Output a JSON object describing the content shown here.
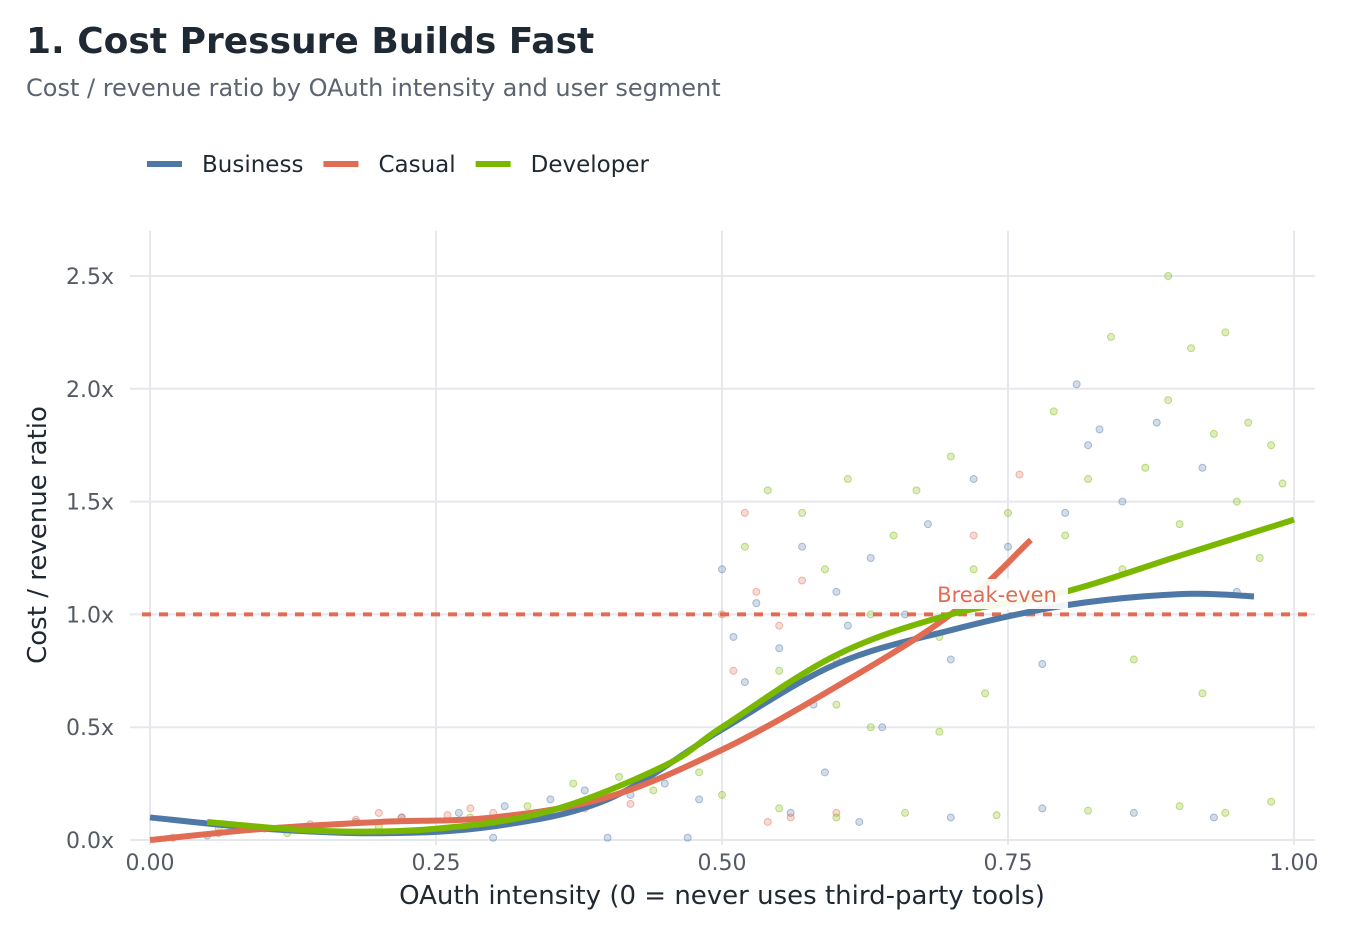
{
  "chart_data": {
    "type": "scatter",
    "title": "1. Cost Pressure Builds Fast",
    "subtitle": "Cost / revenue ratio by OAuth intensity and user segment",
    "xlabel": "OAuth intensity (0 = never uses third-party tools)",
    "ylabel": "Cost / revenue ratio",
    "xlim": [
      0,
      1
    ],
    "ylim": [
      0,
      2.7
    ],
    "xticks": [
      0,
      0.25,
      0.5,
      0.75,
      1.0
    ],
    "xtick_labels": [
      "0.00",
      "0.25",
      "0.50",
      "0.75",
      "1.00"
    ],
    "yticks": [
      0,
      0.5,
      1.0,
      1.5,
      2.0,
      2.5
    ],
    "ytick_labels": [
      "0.0x",
      "0.5x",
      "1.0x",
      "1.5x",
      "2.0x",
      "2.5x"
    ],
    "grid": true,
    "legend_position": "top-left",
    "reference_line": {
      "y": 1.0,
      "label": "Break-even",
      "color": "#e06c53",
      "style": "dashed"
    },
    "series": [
      {
        "name": "Business",
        "color": "#4e79a7",
        "trend": [
          [
            0,
            0.1
          ],
          [
            0.1,
            0.05
          ],
          [
            0.2,
            0.03
          ],
          [
            0.3,
            0.06
          ],
          [
            0.4,
            0.18
          ],
          [
            0.5,
            0.49
          ],
          [
            0.6,
            0.78
          ],
          [
            0.7,
            0.93
          ],
          [
            0.8,
            1.04
          ],
          [
            0.9,
            1.09
          ],
          [
            0.965,
            1.08
          ]
        ],
        "points": [
          [
            0.05,
            0.02
          ],
          [
            0.12,
            0.05
          ],
          [
            0.18,
            0.08
          ],
          [
            0.22,
            0.1
          ],
          [
            0.27,
            0.12
          ],
          [
            0.31,
            0.15
          ],
          [
            0.35,
            0.18
          ],
          [
            0.38,
            0.22
          ],
          [
            0.42,
            0.2
          ],
          [
            0.45,
            0.25
          ],
          [
            0.48,
            0.18
          ],
          [
            0.3,
            0.01
          ],
          [
            0.4,
            0.01
          ],
          [
            0.47,
            0.01
          ],
          [
            0.5,
            1.2
          ],
          [
            0.51,
            0.9
          ],
          [
            0.52,
            0.7
          ],
          [
            0.53,
            1.05
          ],
          [
            0.55,
            0.85
          ],
          [
            0.57,
            1.3
          ],
          [
            0.58,
            0.6
          ],
          [
            0.6,
            1.1
          ],
          [
            0.61,
            0.95
          ],
          [
            0.63,
            1.25
          ],
          [
            0.64,
            0.5
          ],
          [
            0.66,
            1.0
          ],
          [
            0.68,
            1.4
          ],
          [
            0.7,
            0.8
          ],
          [
            0.72,
            1.6
          ],
          [
            0.75,
            1.3
          ],
          [
            0.78,
            0.78
          ],
          [
            0.8,
            1.45
          ],
          [
            0.82,
            1.75
          ],
          [
            0.85,
            1.5
          ],
          [
            0.88,
            1.85
          ],
          [
            0.92,
            1.65
          ],
          [
            0.95,
            1.1
          ],
          [
            0.56,
            0.12
          ],
          [
            0.62,
            0.08
          ],
          [
            0.7,
            0.1
          ],
          [
            0.78,
            0.14
          ],
          [
            0.86,
            0.12
          ],
          [
            0.93,
            0.1
          ],
          [
            0.59,
            0.3
          ],
          [
            0.83,
            1.82
          ],
          [
            0.81,
            2.02
          ]
        ]
      },
      {
        "name": "Casual",
        "color": "#e06c53",
        "trend": [
          [
            0,
            0
          ],
          [
            0.1,
            0.05
          ],
          [
            0.2,
            0.08
          ],
          [
            0.3,
            0.1
          ],
          [
            0.4,
            0.19
          ],
          [
            0.5,
            0.4
          ],
          [
            0.6,
            0.68
          ],
          [
            0.7,
            1.0
          ],
          [
            0.77,
            1.33
          ]
        ],
        "points": [
          [
            0.02,
            0.01
          ],
          [
            0.06,
            0.03
          ],
          [
            0.1,
            0.05
          ],
          [
            0.14,
            0.07
          ],
          [
            0.18,
            0.09
          ],
          [
            0.22,
            0.1
          ],
          [
            0.26,
            0.11
          ],
          [
            0.3,
            0.12
          ],
          [
            0.34,
            0.1
          ],
          [
            0.38,
            0.14
          ],
          [
            0.42,
            0.16
          ],
          [
            0.2,
            0.12
          ],
          [
            0.28,
            0.14
          ],
          [
            0.5,
            1.0
          ],
          [
            0.51,
            0.75
          ],
          [
            0.52,
            1.45
          ],
          [
            0.53,
            1.1
          ],
          [
            0.55,
            0.95
          ],
          [
            0.57,
            1.15
          ],
          [
            0.6,
            0.8
          ],
          [
            0.56,
            0.1
          ],
          [
            0.6,
            0.12
          ],
          [
            0.54,
            0.08
          ],
          [
            0.76,
            1.62
          ],
          [
            0.72,
            1.35
          ]
        ]
      },
      {
        "name": "Developer",
        "color": "#7ab800",
        "trend": [
          [
            0.05,
            0.08
          ],
          [
            0.15,
            0.04
          ],
          [
            0.25,
            0.05
          ],
          [
            0.35,
            0.13
          ],
          [
            0.45,
            0.33
          ],
          [
            0.5,
            0.5
          ],
          [
            0.6,
            0.82
          ],
          [
            0.7,
            1.0
          ],
          [
            0.8,
            1.1
          ],
          [
            0.9,
            1.26
          ],
          [
            1.0,
            1.42
          ]
        ],
        "points": [
          [
            0.06,
            0.05
          ],
          [
            0.12,
            0.03
          ],
          [
            0.2,
            0.06
          ],
          [
            0.28,
            0.1
          ],
          [
            0.33,
            0.15
          ],
          [
            0.37,
            0.25
          ],
          [
            0.41,
            0.28
          ],
          [
            0.44,
            0.22
          ],
          [
            0.48,
            0.3
          ],
          [
            0.5,
            0.2
          ],
          [
            0.52,
            1.3
          ],
          [
            0.54,
            1.55
          ],
          [
            0.55,
            0.75
          ],
          [
            0.57,
            1.45
          ],
          [
            0.59,
            1.2
          ],
          [
            0.6,
            0.6
          ],
          [
            0.61,
            1.6
          ],
          [
            0.63,
            1.0
          ],
          [
            0.65,
            1.35
          ],
          [
            0.67,
            1.55
          ],
          [
            0.69,
            0.9
          ],
          [
            0.7,
            1.7
          ],
          [
            0.72,
            1.2
          ],
          [
            0.73,
            0.65
          ],
          [
            0.75,
            1.45
          ],
          [
            0.77,
            1.1
          ],
          [
            0.79,
            1.9
          ],
          [
            0.8,
            1.35
          ],
          [
            0.82,
            1.6
          ],
          [
            0.84,
            2.23
          ],
          [
            0.85,
            1.2
          ],
          [
            0.87,
            1.65
          ],
          [
            0.89,
            1.95
          ],
          [
            0.9,
            1.4
          ],
          [
            0.91,
            2.18
          ],
          [
            0.92,
            0.65
          ],
          [
            0.93,
            1.8
          ],
          [
            0.94,
            2.25
          ],
          [
            0.95,
            1.5
          ],
          [
            0.96,
            1.85
          ],
          [
            0.97,
            1.25
          ],
          [
            0.98,
            1.75
          ],
          [
            0.99,
            1.58
          ],
          [
            0.89,
            2.5
          ],
          [
            0.86,
            0.8
          ],
          [
            0.6,
            0.1
          ],
          [
            0.66,
            0.12
          ],
          [
            0.74,
            0.11
          ],
          [
            0.82,
            0.13
          ],
          [
            0.9,
            0.15
          ],
          [
            0.98,
            0.17
          ],
          [
            0.63,
            0.5
          ],
          [
            0.69,
            0.48
          ],
          [
            0.55,
            0.14
          ],
          [
            0.94,
            0.12
          ]
        ]
      }
    ]
  }
}
